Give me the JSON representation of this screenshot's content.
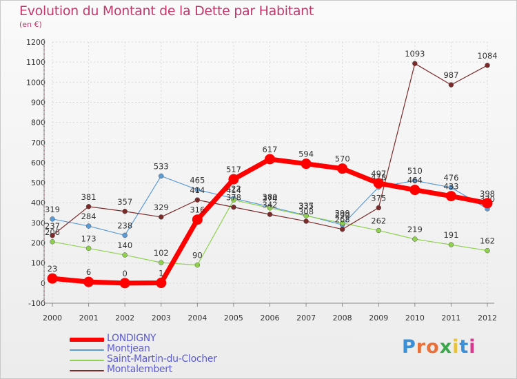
{
  "header": {
    "title": "Evolution du Montant de la Dette par Habitant",
    "unit": "(en €)"
  },
  "logo": {
    "text": "Proxiti",
    "letter_colors": [
      "#3a8fd6",
      "#e8703a",
      "#e8703a",
      "#3aa84a",
      "#e8c23a",
      "#3a8fd6",
      "#d63a8f"
    ]
  },
  "chart_data": {
    "type": "line",
    "x": [
      "2000",
      "2001",
      "2002",
      "2003",
      "2004",
      "2005",
      "2006",
      "2007",
      "2008",
      "2009",
      "2010",
      "2011",
      "2012"
    ],
    "ylim": [
      -100,
      1200
    ],
    "yticks": [
      "-100",
      "0",
      "100",
      "200",
      "300",
      "400",
      "500",
      "600",
      "700",
      "800",
      "900",
      "1000",
      "1100",
      "1200"
    ],
    "grid": true,
    "legend_position": "bottom-left",
    "series": [
      {
        "name": "Montjean",
        "color": "#5b9bd5",
        "values": [
          319,
          284,
          238,
          533,
          465,
          422,
          380,
          337,
          290,
          478,
          510,
          476,
          370
        ],
        "labels": [
          "319",
          "284",
          "238",
          "533",
          "465",
          "422",
          "380",
          "337",
          "290",
          "478",
          "510",
          "476",
          "370"
        ]
      },
      {
        "name": "Saint-Martin-du-Clocher",
        "color": "#8fd14f",
        "values": [
          206,
          173,
          140,
          102,
          90,
          414,
          374,
          335,
          299,
          262,
          219,
          191,
          162
        ],
        "labels": [
          "206",
          "173",
          "140",
          "102",
          "90",
          "414",
          "374",
          "335",
          "299",
          "262",
          "219",
          "191",
          "162"
        ]
      },
      {
        "name": "Montalembert",
        "color": "#7b2a2a",
        "values": [
          237,
          381,
          357,
          329,
          414,
          378,
          342,
          308,
          268,
          375,
          1093,
          987,
          1084
        ],
        "labels": [
          "237",
          "381",
          "357",
          "329",
          "414",
          "378",
          "342",
          "308",
          "268",
          "375",
          "1093",
          "987",
          "1084"
        ]
      },
      {
        "name": "LONDIGNY",
        "color": "#ff0000",
        "values": [
          23,
          6,
          0,
          1,
          316,
          517,
          617,
          594,
          570,
          497,
          464,
          433,
          398
        ],
        "labels": [
          "23",
          "6",
          "0",
          "1",
          "316",
          "517",
          "617",
          "594",
          "570",
          "497",
          "464",
          "433",
          "398"
        ]
      }
    ]
  }
}
